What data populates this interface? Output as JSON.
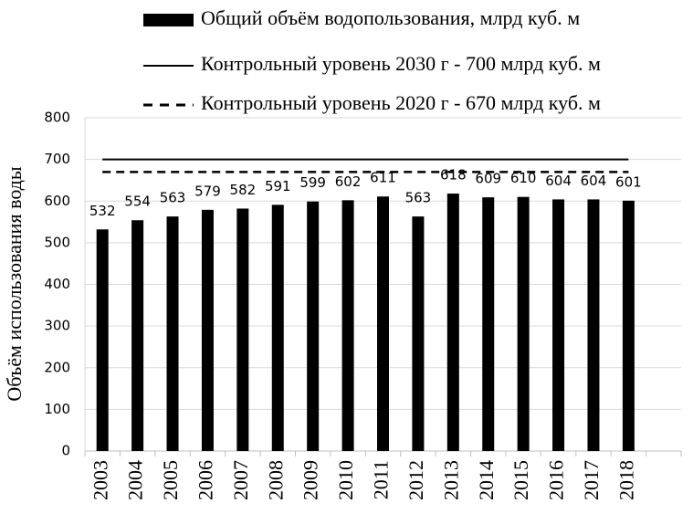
{
  "chart_data": {
    "type": "bar",
    "y_label": "Объём использования воды",
    "categories": [
      "2003",
      "2004",
      "2005",
      "2006",
      "2007",
      "2008",
      "2009",
      "2010",
      "2011",
      "2012",
      "2013",
      "2014",
      "2015",
      "2016",
      "2017",
      "2018",
      null
    ],
    "series": [
      {
        "name": "Общий объём водопользования, млрд куб. м",
        "type": "bar",
        "color": "#000000",
        "values": [
          532,
          554,
          563,
          579,
          582,
          591,
          599,
          602,
          611,
          563,
          618,
          609,
          610,
          604,
          604,
          601,
          null
        ]
      },
      {
        "name": "Контрольный уровень 2030 г  - 700 млрд куб. м",
        "type": "line",
        "color": "#000000",
        "dashed": false,
        "values": [
          700,
          700,
          700,
          700,
          700,
          700,
          700,
          700,
          700,
          700,
          700,
          700,
          700,
          700,
          700,
          700,
          null
        ]
      },
      {
        "name": "Контрольный уровень 2020 г - 670 млрд куб. м",
        "type": "line",
        "color": "#000000",
        "dashed": true,
        "values": [
          670,
          670,
          670,
          670,
          670,
          670,
          670,
          670,
          670,
          670,
          670,
          670,
          670,
          670,
          670,
          670,
          null
        ]
      }
    ],
    "ylim": [
      0,
      800
    ],
    "yticks": [
      0,
      100,
      200,
      300,
      400,
      500,
      600,
      700,
      800
    ],
    "grid": true,
    "data_labels": true
  }
}
